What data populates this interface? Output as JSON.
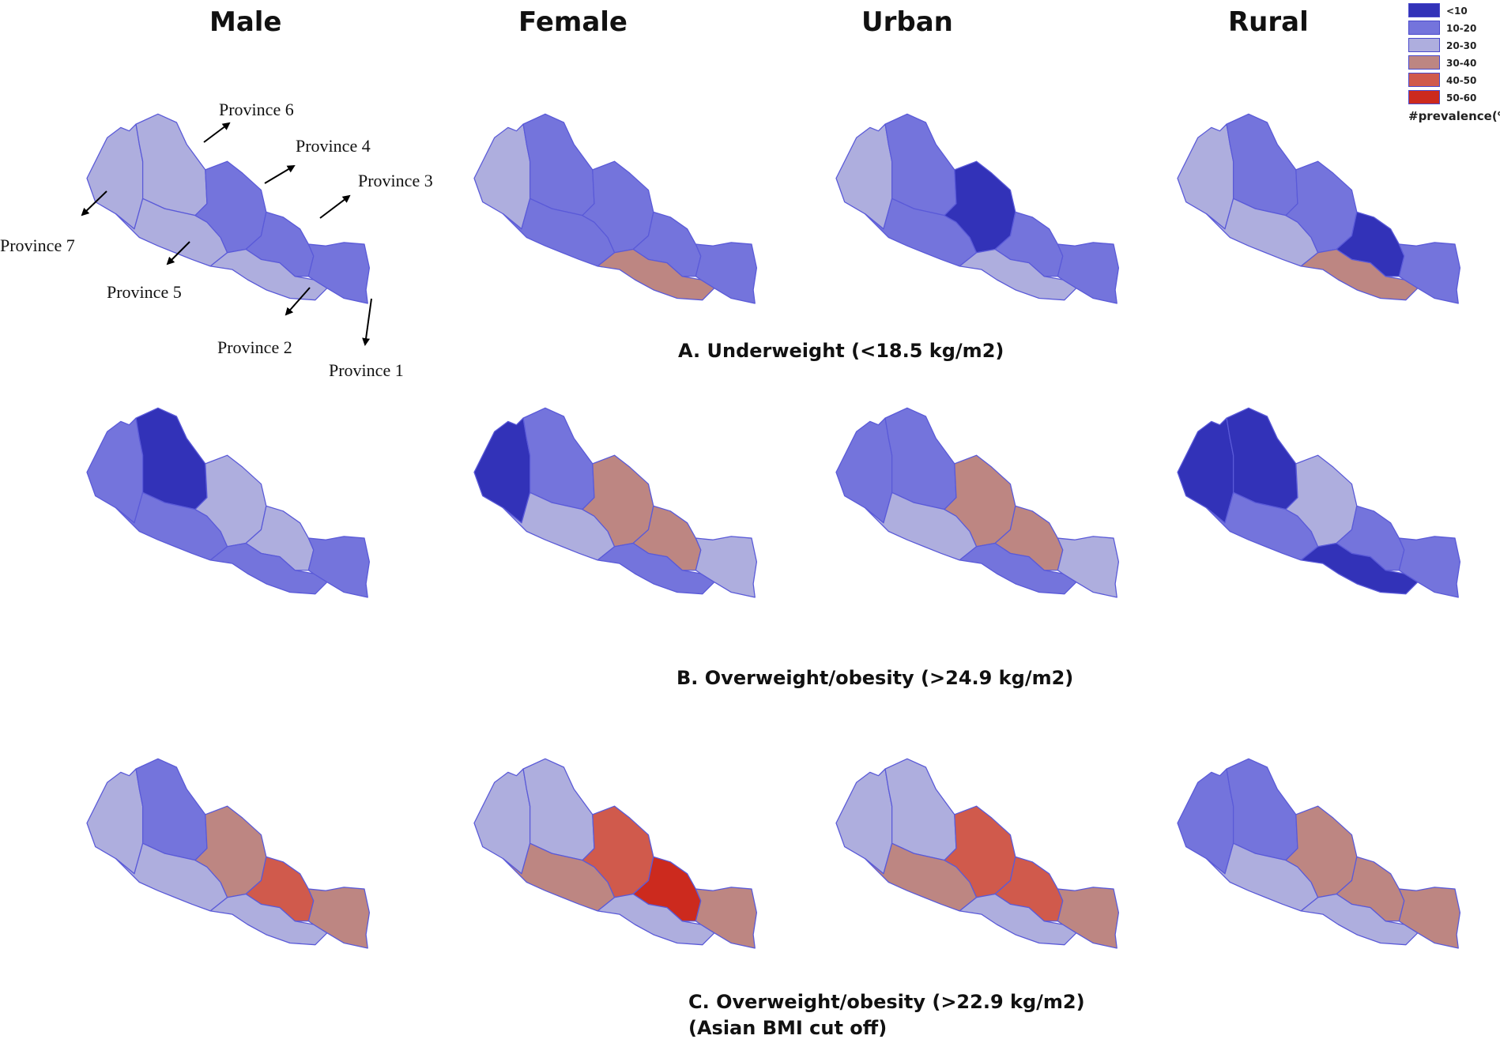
{
  "columns": [
    "Male",
    "Female",
    "Urban",
    "Rural"
  ],
  "legend": {
    "title": "#prevalence(%)",
    "classes": [
      {
        "label": "<10",
        "color": "#3232b8"
      },
      {
        "label": "10-20",
        "color": "#7474dc"
      },
      {
        "label": "20-30",
        "color": "#aeaede"
      },
      {
        "label": "30-40",
        "color": "#bd8682"
      },
      {
        "label": "40-50",
        "color": "#d05a4c"
      },
      {
        "label": "50-60",
        "color": "#cc2a1e"
      }
    ]
  },
  "provinces": [
    "Province 7",
    "Province 6",
    "Province 5",
    "Province 4",
    "Province 3",
    "Province 2",
    "Province 1"
  ],
  "province_labels": {
    "p6": "Province 6",
    "p4": "Province 4",
    "p3": "Province 3",
    "p7": "Province 7",
    "p5": "Province 5",
    "p2": "Province 2",
    "p1": "Province 1"
  },
  "panels": [
    {
      "caption": [
        "A. Underweight (<18.5 kg/m2)"
      ],
      "maps": {
        "Male": {
          "Province 7": "20-30",
          "Province 6": "20-30",
          "Province 5": "20-30",
          "Province 4": "10-20",
          "Province 3": "10-20",
          "Province 2": "20-30",
          "Province 1": "10-20"
        },
        "Female": {
          "Province 7": "20-30",
          "Province 6": "10-20",
          "Province 5": "10-20",
          "Province 4": "10-20",
          "Province 3": "10-20",
          "Province 2": "30-40",
          "Province 1": "10-20"
        },
        "Urban": {
          "Province 7": "20-30",
          "Province 6": "10-20",
          "Province 5": "10-20",
          "Province 4": "<10",
          "Province 3": "10-20",
          "Province 2": "20-30",
          "Province 1": "10-20"
        },
        "Rural": {
          "Province 7": "20-30",
          "Province 6": "10-20",
          "Province 5": "20-30",
          "Province 4": "10-20",
          "Province 3": "<10",
          "Province 2": "30-40",
          "Province 1": "10-20"
        }
      }
    },
    {
      "caption": [
        "B. Overweight/obesity (>24.9 kg/m2)"
      ],
      "maps": {
        "Male": {
          "Province 7": "10-20",
          "Province 6": "<10",
          "Province 5": "10-20",
          "Province 4": "20-30",
          "Province 3": "20-30",
          "Province 2": "10-20",
          "Province 1": "10-20"
        },
        "Female": {
          "Province 7": "<10",
          "Province 6": "10-20",
          "Province 5": "20-30",
          "Province 4": "30-40",
          "Province 3": "30-40",
          "Province 2": "10-20",
          "Province 1": "20-30"
        },
        "Urban": {
          "Province 7": "10-20",
          "Province 6": "10-20",
          "Province 5": "20-30",
          "Province 4": "30-40",
          "Province 3": "30-40",
          "Province 2": "10-20",
          "Province 1": "20-30"
        },
        "Rural": {
          "Province 7": "<10",
          "Province 6": "<10",
          "Province 5": "10-20",
          "Province 4": "20-30",
          "Province 3": "10-20",
          "Province 2": "<10",
          "Province 1": "10-20"
        }
      }
    },
    {
      "caption": [
        "C. Overweight/obesity (>22.9 kg/m2)",
        "(Asian BMI cut off)"
      ],
      "maps": {
        "Male": {
          "Province 7": "20-30",
          "Province 6": "10-20",
          "Province 5": "20-30",
          "Province 4": "30-40",
          "Province 3": "40-50",
          "Province 2": "20-30",
          "Province 1": "30-40"
        },
        "Female": {
          "Province 7": "20-30",
          "Province 6": "20-30",
          "Province 5": "30-40",
          "Province 4": "40-50",
          "Province 3": "50-60",
          "Province 2": "20-30",
          "Province 1": "30-40"
        },
        "Urban": {
          "Province 7": "20-30",
          "Province 6": "20-30",
          "Province 5": "30-40",
          "Province 4": "40-50",
          "Province 3": "40-50",
          "Province 2": "20-30",
          "Province 1": "30-40"
        },
        "Rural": {
          "Province 7": "10-20",
          "Province 6": "10-20",
          "Province 5": "20-30",
          "Province 4": "30-40",
          "Province 3": "30-40",
          "Province 2": "20-30",
          "Province 1": "30-40"
        }
      }
    }
  ]
}
